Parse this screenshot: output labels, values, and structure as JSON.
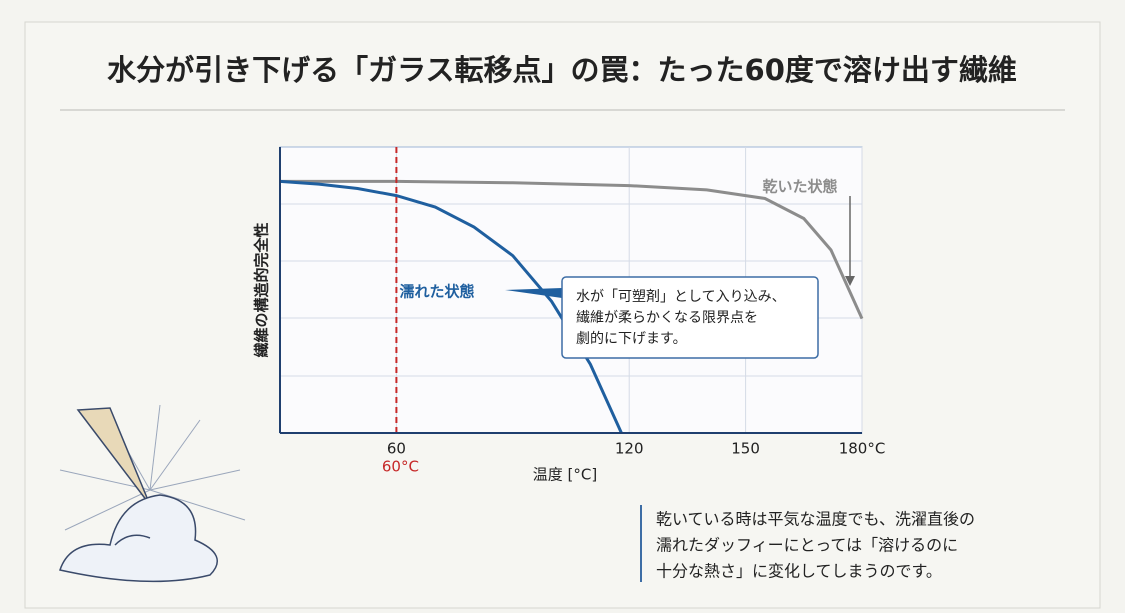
{
  "title": "水分が引き下げる「ガラス転移点」の罠：たった60度で溶け出す繊維",
  "chart_data": {
    "type": "line",
    "xlabel": "温度 [°C]",
    "ylabel": "繊維の構造的完全性",
    "xlim": [
      30,
      180
    ],
    "xticks": [
      60,
      120,
      150,
      {
        "value": 180,
        "label": "180°C"
      }
    ],
    "ylim": [
      0,
      100
    ],
    "grid": true,
    "series": [
      {
        "name": "乾いた状態",
        "color": "#8c8c8c",
        "x": [
          30,
          60,
          90,
          120,
          140,
          155,
          165,
          172,
          180
        ],
        "values": [
          88,
          88,
          87.5,
          86.5,
          85,
          82,
          75,
          64,
          40
        ]
      },
      {
        "name": "濡れた状態",
        "color": "#1f5f9f",
        "x": [
          30,
          40,
          50,
          60,
          70,
          80,
          90,
          100,
          110,
          118
        ],
        "values": [
          88,
          87,
          85.5,
          83,
          79,
          72,
          62,
          46,
          24,
          0
        ]
      }
    ],
    "marker": {
      "x": 60,
      "label": "60°C",
      "color": "#c62828"
    },
    "callout": [
      "水が「可塑剤」として入り込み、",
      "繊維が柔らかくなる限界点を",
      "劇的に下げます。"
    ]
  },
  "note": [
    "乾いている時は平気な温度でも、洗濯直後の",
    "濡れたダッフィーにとっては「溶けるのに",
    "十分な熱さ」に変化してしまうのです。"
  ]
}
